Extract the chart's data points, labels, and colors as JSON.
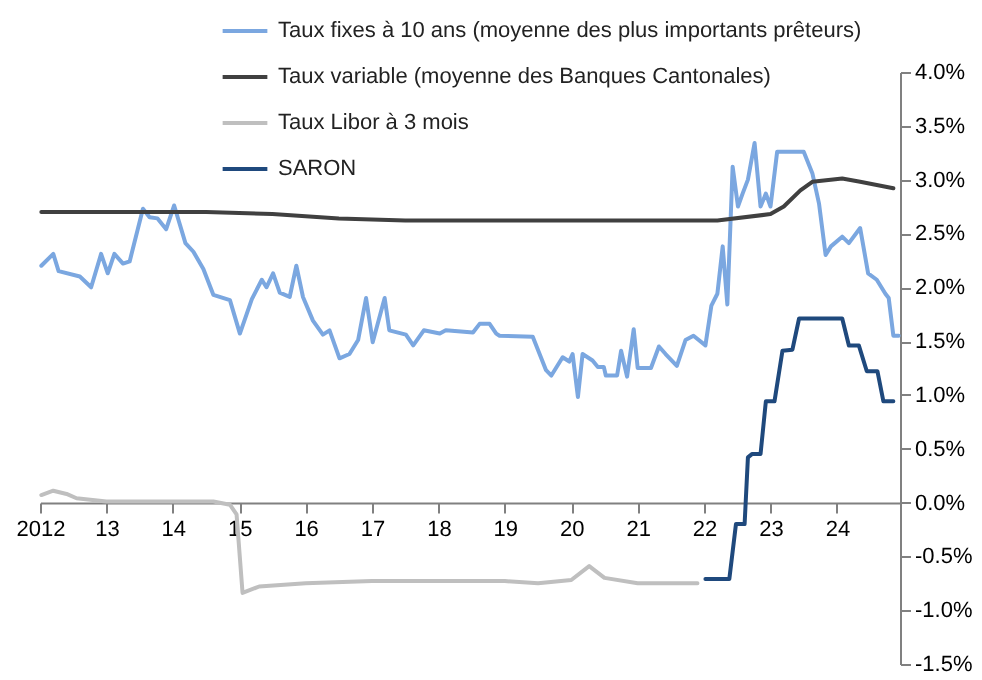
{
  "chart_data": {
    "type": "line",
    "xlim": [
      2012,
      2024.95
    ],
    "xticks": [
      {
        "value": 2012,
        "label": "2012"
      },
      {
        "value": 2013,
        "label": "13"
      },
      {
        "value": 2014,
        "label": "14"
      },
      {
        "value": 2015,
        "label": "15"
      },
      {
        "value": 2016,
        "label": "16"
      },
      {
        "value": 2017,
        "label": "17"
      },
      {
        "value": 2018,
        "label": "18"
      },
      {
        "value": 2019,
        "label": "19"
      },
      {
        "value": 2020,
        "label": "20"
      },
      {
        "value": 2021,
        "label": "21"
      },
      {
        "value": 2022,
        "label": "22"
      },
      {
        "value": 2023,
        "label": "23"
      },
      {
        "value": 2024,
        "label": "24"
      }
    ],
    "ylim": [
      -1.5,
      4.0
    ],
    "yticks": [
      {
        "value": -1.5,
        "label": "-1.5%"
      },
      {
        "value": -1.0,
        "label": "-1.0%"
      },
      {
        "value": -0.5,
        "label": "-0.5%"
      },
      {
        "value": 0,
        "label": "0.0%"
      },
      {
        "value": 0.5,
        "label": "0.5%"
      },
      {
        "value": 1.0,
        "label": "1.0%"
      },
      {
        "value": 1.5,
        "label": "1.5%"
      },
      {
        "value": 2.0,
        "label": "2.0%"
      },
      {
        "value": 2.5,
        "label": "2.5%"
      },
      {
        "value": 3.0,
        "label": "3.0%"
      },
      {
        "value": 3.5,
        "label": "3.5%"
      },
      {
        "value": 4.0,
        "label": "4.0%"
      }
    ],
    "grid": false,
    "legend": "top",
    "line_style": "solid",
    "marker": "none",
    "series": [
      {
        "name": "Taux fixes à 10 ans (moyenne des plus importants prêteurs)",
        "color": "#7ba7e0",
        "x": [
          2012.02,
          2012.2,
          2012.28,
          2012.6,
          2012.77,
          2012.92,
          2013.02,
          2013.12,
          2013.25,
          2013.35,
          2013.55,
          2013.65,
          2013.77,
          2013.9,
          2014.02,
          2014.19,
          2014.31,
          2014.46,
          2014.61,
          2014.86,
          2015.01,
          2015.19,
          2015.34,
          2015.41,
          2015.51,
          2015.61,
          2015.76,
          2015.86,
          2015.96,
          2016.11,
          2016.26,
          2016.36,
          2016.51,
          2016.66,
          2016.79,
          2016.91,
          2017.01,
          2017.19,
          2017.26,
          2017.51,
          2017.62,
          2017.78,
          2018.02,
          2018.11,
          2018.52,
          2018.62,
          2018.77,
          2018.87,
          2018.92,
          2019.42,
          2019.62,
          2019.7,
          2019.87,
          2019.97,
          2020.02,
          2020.1,
          2020.17,
          2020.32,
          2020.4,
          2020.49,
          2020.52,
          2020.69,
          2020.75,
          2020.84,
          2020.94,
          2021.0,
          2021.2,
          2021.32,
          2021.42,
          2021.59,
          2021.72,
          2021.84,
          2022.02,
          2022.11,
          2022.2,
          2022.28,
          2022.35,
          2022.43,
          2022.51,
          2022.58,
          2022.66,
          2022.76,
          2022.85,
          2022.93,
          2023.0,
          2023.1,
          2023.5,
          2023.63,
          2023.73,
          2023.83,
          2023.91,
          2024.08,
          2024.18,
          2024.35,
          2024.47,
          2024.6,
          2024.73,
          2024.78,
          2024.85,
          2024.93
        ],
        "values": [
          2.2,
          2.31,
          2.15,
          2.1,
          2.0,
          2.31,
          2.13,
          2.31,
          2.22,
          2.24,
          2.73,
          2.65,
          2.64,
          2.54,
          2.76,
          2.41,
          2.33,
          2.17,
          1.93,
          1.88,
          1.57,
          1.89,
          2.07,
          2.0,
          2.13,
          1.95,
          1.91,
          2.2,
          1.91,
          1.69,
          1.56,
          1.6,
          1.34,
          1.38,
          1.51,
          1.9,
          1.49,
          1.9,
          1.6,
          1.56,
          1.46,
          1.6,
          1.57,
          1.6,
          1.58,
          1.66,
          1.66,
          1.57,
          1.55,
          1.54,
          1.23,
          1.18,
          1.35,
          1.31,
          1.38,
          0.98,
          1.38,
          1.32,
          1.26,
          1.26,
          1.18,
          1.18,
          1.41,
          1.17,
          1.61,
          1.25,
          1.25,
          1.45,
          1.38,
          1.27,
          1.51,
          1.55,
          1.46,
          1.83,
          1.94,
          2.38,
          1.84,
          3.12,
          2.75,
          2.87,
          3.0,
          3.34,
          2.75,
          2.87,
          2.75,
          3.26,
          3.26,
          3.06,
          2.78,
          2.3,
          2.38,
          2.47,
          2.41,
          2.55,
          2.13,
          2.07,
          1.94,
          1.9,
          1.55,
          1.55
        ]
      },
      {
        "name": "Taux variable (moyenne des Banques Cantonales)",
        "color": "#404040",
        "x": [
          2012.02,
          2014.5,
          2015.5,
          2016.5,
          2017.5,
          2021.0,
          2022.2,
          2023.0,
          2023.2,
          2023.45,
          2023.63,
          2024.08,
          2024.35,
          2024.6,
          2024.85
        ],
        "values": [
          2.7,
          2.7,
          2.68,
          2.64,
          2.62,
          2.62,
          2.62,
          2.68,
          2.75,
          2.9,
          2.98,
          3.01,
          2.98,
          2.95,
          2.92
        ]
      },
      {
        "name": "Taux Libor à 3 mois",
        "color": "#bfbfbf",
        "x": [
          2012.02,
          2012.2,
          2012.4,
          2012.55,
          2013.0,
          2014.61,
          2014.86,
          2014.96,
          2015.05,
          2015.3,
          2016.0,
          2017.0,
          2018.0,
          2019.0,
          2019.5,
          2020.0,
          2020.27,
          2020.5,
          2021.0,
          2021.5,
          2021.9
        ],
        "values": [
          0.07,
          0.11,
          0.08,
          0.04,
          0.01,
          0.01,
          -0.02,
          -0.11,
          -0.84,
          -0.78,
          -0.75,
          -0.73,
          -0.73,
          -0.73,
          -0.75,
          -0.72,
          -0.59,
          -0.7,
          -0.75,
          -0.75,
          -0.75
        ]
      },
      {
        "name": "SARON",
        "color": "#1f497d",
        "x": [
          2022.02,
          2022.38,
          2022.48,
          2022.61,
          2022.66,
          2022.72,
          2022.85,
          2022.93,
          2023.06,
          2023.18,
          2023.33,
          2023.43,
          2023.68,
          2024.08,
          2024.18,
          2024.33,
          2024.45,
          2024.61,
          2024.7,
          2024.85
        ],
        "values": [
          -0.71,
          -0.71,
          -0.2,
          -0.2,
          0.42,
          0.45,
          0.45,
          0.94,
          0.94,
          1.41,
          1.42,
          1.71,
          1.71,
          1.71,
          1.46,
          1.46,
          1.22,
          1.22,
          0.94,
          0.94
        ]
      }
    ]
  }
}
